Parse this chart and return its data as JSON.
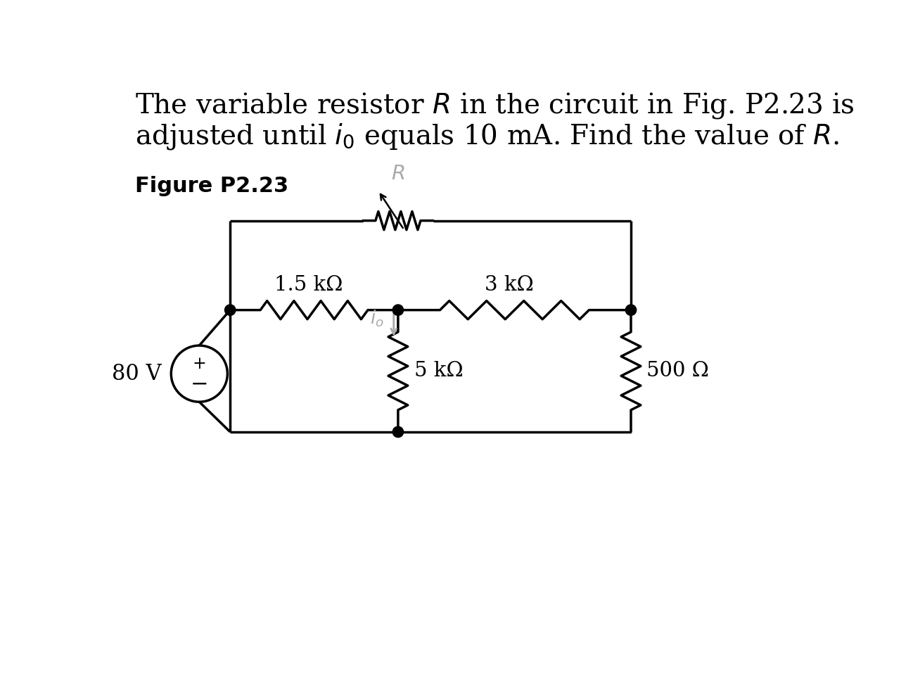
{
  "bg_color": "#ffffff",
  "line_color": "#000000",
  "gray_color": "#aaaaaa",
  "label_1k5": "1.5 kΩ",
  "label_3k": "3 kΩ",
  "label_5k": "5 kΩ",
  "label_500": "500 Ω",
  "label_80V": "80 V",
  "label_plus": "+",
  "label_minus": "−",
  "figure_label": "Figure P2.23",
  "title_fontsize": 28,
  "fig_label_fontsize": 22,
  "resistor_label_fontsize": 21,
  "source_label_fontsize": 22,
  "io_fontsize": 19,
  "R_label_fontsize": 21
}
